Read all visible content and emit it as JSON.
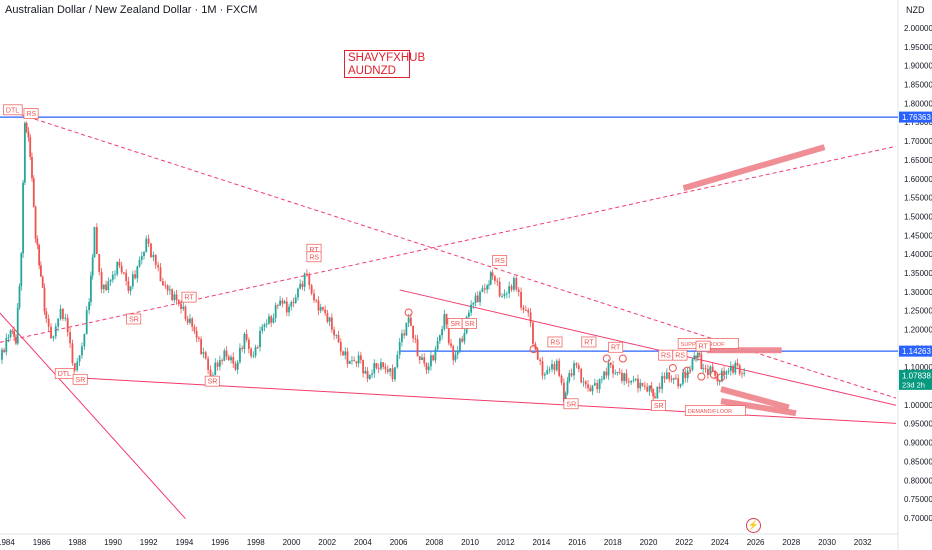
{
  "header": {
    "title": "Australian Dollar / New Zealand Dollar · 1M · FXCM"
  },
  "watermark": {
    "line1": "SHAVYFXHUB",
    "line2": "AUDNZD"
  },
  "axis": {
    "currency": "NZD",
    "bolt_icon": "lightning-icon"
  },
  "colors": {
    "up": "#26a69a",
    "down": "#ef5350",
    "trendline": "#f23c6c",
    "horizontal": "#2962ff",
    "zone": "#f08890",
    "price_badge": "#2962ff",
    "current_badge": "#089981"
  },
  "chart_data": {
    "type": "candlestick",
    "title": "Australian Dollar / New Zealand Dollar · 1M · FXCM",
    "ylabel": "NZD",
    "ylim": [
      0.68,
      2.08
    ],
    "xlim": [
      1983.5,
      2033.8
    ],
    "y_ticks": [
      "2.00000",
      "1.95000",
      "1.90000",
      "1.85000",
      "1.80000",
      "1.75000",
      "1.70000",
      "1.65000",
      "1.60000",
      "1.55000",
      "1.50000",
      "1.45000",
      "1.40000",
      "1.35000",
      "1.30000",
      "1.25000",
      "1.20000",
      "1.15000",
      "1.10000",
      "1.05000",
      "1.00000",
      "0.95000",
      "0.90000",
      "0.85000",
      "0.80000",
      "0.75000",
      "0.70000"
    ],
    "x_ticks": [
      "1984",
      "1986",
      "1988",
      "1990",
      "1992",
      "1994",
      "1996",
      "1998",
      "2000",
      "2002",
      "2004",
      "2006",
      "2008",
      "2010",
      "2012",
      "2014",
      "2016",
      "2018",
      "2020",
      "2022",
      "2024",
      "2026",
      "2028",
      "2030",
      "2032"
    ],
    "price_levels": [
      {
        "label": "1.76363",
        "value": 1.76363,
        "kind": "resistance-line"
      },
      {
        "label": "1.14263",
        "value": 1.14263,
        "kind": "support-line"
      },
      {
        "label": "1.07838",
        "value": 1.07838,
        "kind": "last-price",
        "countdown": "23d 2h"
      }
    ],
    "price_path": [
      [
        1983.6,
        1.12
      ],
      [
        1984.2,
        1.2
      ],
      [
        1984.5,
        1.17
      ],
      [
        1984.8,
        1.4
      ],
      [
        1985.0,
        1.76
      ],
      [
        1985.3,
        1.67
      ],
      [
        1985.6,
        1.45
      ],
      [
        1985.9,
        1.34
      ],
      [
        1986.2,
        1.22
      ],
      [
        1986.6,
        1.17
      ],
      [
        1987.0,
        1.26
      ],
      [
        1987.4,
        1.2
      ],
      [
        1987.8,
        1.08
      ],
      [
        1988.2,
        1.16
      ],
      [
        1988.6,
        1.28
      ],
      [
        1988.9,
        1.46
      ],
      [
        1989.3,
        1.3
      ],
      [
        1989.8,
        1.33
      ],
      [
        1990.3,
        1.38
      ],
      [
        1990.8,
        1.31
      ],
      [
        1991.3,
        1.36
      ],
      [
        1991.8,
        1.43
      ],
      [
        1992.2,
        1.39
      ],
      [
        1992.6,
        1.34
      ],
      [
        1993.0,
        1.3
      ],
      [
        1993.5,
        1.28
      ],
      [
        1994.0,
        1.24
      ],
      [
        1994.5,
        1.2
      ],
      [
        1995.0,
        1.13
      ],
      [
        1995.4,
        1.08
      ],
      [
        1995.8,
        1.11
      ],
      [
        1996.3,
        1.14
      ],
      [
        1996.8,
        1.1
      ],
      [
        1997.3,
        1.18
      ],
      [
        1997.8,
        1.12
      ],
      [
        1998.3,
        1.21
      ],
      [
        1998.8,
        1.23
      ],
      [
        1999.3,
        1.28
      ],
      [
        1999.8,
        1.25
      ],
      [
        2000.3,
        1.3
      ],
      [
        2000.8,
        1.35
      ],
      [
        2001.2,
        1.27
      ],
      [
        2001.7,
        1.25
      ],
      [
        2002.2,
        1.21
      ],
      [
        2002.7,
        1.15
      ],
      [
        2003.2,
        1.11
      ],
      [
        2003.7,
        1.12
      ],
      [
        2004.2,
        1.07
      ],
      [
        2004.7,
        1.11
      ],
      [
        2005.2,
        1.1
      ],
      [
        2005.6,
        1.08
      ],
      [
        2006.0,
        1.16
      ],
      [
        2006.5,
        1.23
      ],
      [
        2007.0,
        1.14
      ],
      [
        2007.5,
        1.1
      ],
      [
        2008.0,
        1.14
      ],
      [
        2008.5,
        1.23
      ],
      [
        2009.0,
        1.12
      ],
      [
        2009.5,
        1.18
      ],
      [
        2010.0,
        1.27
      ],
      [
        2010.5,
        1.29
      ],
      [
        2010.9,
        1.32
      ],
      [
        2011.2,
        1.35
      ],
      [
        2011.6,
        1.3
      ],
      [
        2012.0,
        1.29
      ],
      [
        2012.4,
        1.33
      ],
      [
        2012.8,
        1.27
      ],
      [
        2013.2,
        1.24
      ],
      [
        2013.6,
        1.14
      ],
      [
        2014.0,
        1.09
      ],
      [
        2014.4,
        1.09
      ],
      [
        2014.8,
        1.11
      ],
      [
        2015.2,
        1.02
      ],
      [
        2015.5,
        1.08
      ],
      [
        2015.9,
        1.11
      ],
      [
        2016.3,
        1.05
      ],
      [
        2016.8,
        1.04
      ],
      [
        2017.2,
        1.06
      ],
      [
        2017.7,
        1.1
      ],
      [
        2018.2,
        1.08
      ],
      [
        2018.7,
        1.07
      ],
      [
        2019.1,
        1.06
      ],
      [
        2019.6,
        1.05
      ],
      [
        2020.0,
        1.04
      ],
      [
        2020.3,
        1.02
      ],
      [
        2020.7,
        1.07
      ],
      [
        2021.1,
        1.08
      ],
      [
        2021.6,
        1.06
      ],
      [
        2022.0,
        1.08
      ],
      [
        2022.4,
        1.11
      ],
      [
        2022.7,
        1.14
      ],
      [
        2023.0,
        1.09
      ],
      [
        2023.4,
        1.09
      ],
      [
        2023.8,
        1.07
      ],
      [
        2024.3,
        1.09
      ],
      [
        2024.8,
        1.1
      ],
      [
        2025.3,
        1.078
      ]
    ],
    "trendlines": [
      {
        "from": [
          1983.6,
          1.166
        ],
        "to": [
          2033.8,
          1.686
        ],
        "style": "dashed"
      },
      {
        "from": [
          1984.8,
          1.77
        ],
        "to": [
          2033.8,
          1.018
        ],
        "style": "dashed"
      },
      {
        "from": [
          1983.6,
          1.244
        ],
        "to": [
          1994.0,
          0.698
        ],
        "style": "solid"
      },
      {
        "from": [
          1987.5,
          1.073
        ],
        "to": [
          2033.8,
          0.951
        ],
        "style": "solid"
      },
      {
        "from": [
          2006.0,
          1.305
        ],
        "to": [
          2033.8,
          0.999
        ],
        "style": "solid"
      }
    ],
    "zones": [
      {
        "from": [
          2021.9,
          1.575
        ],
        "to": [
          2029.8,
          1.684
        ]
      },
      {
        "from": [
          2023.2,
          1.145
        ],
        "to": [
          2027.4,
          1.145
        ]
      },
      {
        "from": [
          2024.0,
          1.042
        ],
        "to": [
          2027.8,
          0.993
        ]
      },
      {
        "from": [
          2024.0,
          1.01
        ],
        "to": [
          2028.2,
          0.978
        ]
      }
    ],
    "annotations": [
      {
        "text": "DTL",
        "x": 1983.8,
        "y": 1.775,
        "style": "box"
      },
      {
        "text": "RS",
        "x": 1984.95,
        "y": 1.765,
        "style": "box"
      },
      {
        "text": "RT",
        "x": 2000.8,
        "y": 1.405,
        "style": "box"
      },
      {
        "text": "RS",
        "x": 2000.8,
        "y": 1.385,
        "style": "box"
      },
      {
        "text": "RS",
        "x": 2011.2,
        "y": 1.375,
        "style": "box"
      },
      {
        "text": "RT",
        "x": 1993.8,
        "y": 1.278,
        "style": "box"
      },
      {
        "text": "SR",
        "x": 1990.7,
        "y": 1.22,
        "style": "box"
      },
      {
        "text": "SR",
        "x": 2008.7,
        "y": 1.208,
        "style": "box"
      },
      {
        "text": "SR",
        "x": 2009.5,
        "y": 1.208,
        "style": "box"
      },
      {
        "text": "RS",
        "x": 2014.3,
        "y": 1.159,
        "style": "box"
      },
      {
        "text": "RT",
        "x": 2016.2,
        "y": 1.159,
        "style": "box"
      },
      {
        "text": "SUPPORT/ROOF",
        "x": 2021.6,
        "y": 1.155,
        "style": "box"
      },
      {
        "text": "RT",
        "x": 2017.7,
        "y": 1.145,
        "style": "box"
      },
      {
        "text": "RT",
        "x": 2022.6,
        "y": 1.148,
        "style": "box"
      },
      {
        "text": "RS",
        "x": 2020.5,
        "y": 1.124,
        "style": "box"
      },
      {
        "text": "RS",
        "x": 2021.3,
        "y": 1.124,
        "style": "box"
      },
      {
        "text": "DTL",
        "x": 1986.7,
        "y": 1.075,
        "style": "box"
      },
      {
        "text": "SR",
        "x": 1987.7,
        "y": 1.06,
        "style": "box"
      },
      {
        "text": "SR",
        "x": 1995.1,
        "y": 1.055,
        "style": "box"
      },
      {
        "text": "SR",
        "x": 2015.2,
        "y": 0.995,
        "style": "box"
      },
      {
        "text": "SR",
        "x": 2020.1,
        "y": 0.99,
        "style": "box"
      },
      {
        "text": "DEMAND/FLOOR",
        "x": 2022.0,
        "y": 0.977,
        "style": "box"
      }
    ],
    "circles": [
      [
        2006.5,
        1.245
      ],
      [
        2013.5,
        1.148
      ],
      [
        2017.6,
        1.123
      ],
      [
        2018.5,
        1.123
      ],
      [
        2021.3,
        1.098
      ],
      [
        2022.1,
        1.091
      ],
      [
        2022.9,
        1.075
      ],
      [
        2023.6,
        1.08
      ],
      [
        2024.0,
        1.073
      ]
    ]
  }
}
